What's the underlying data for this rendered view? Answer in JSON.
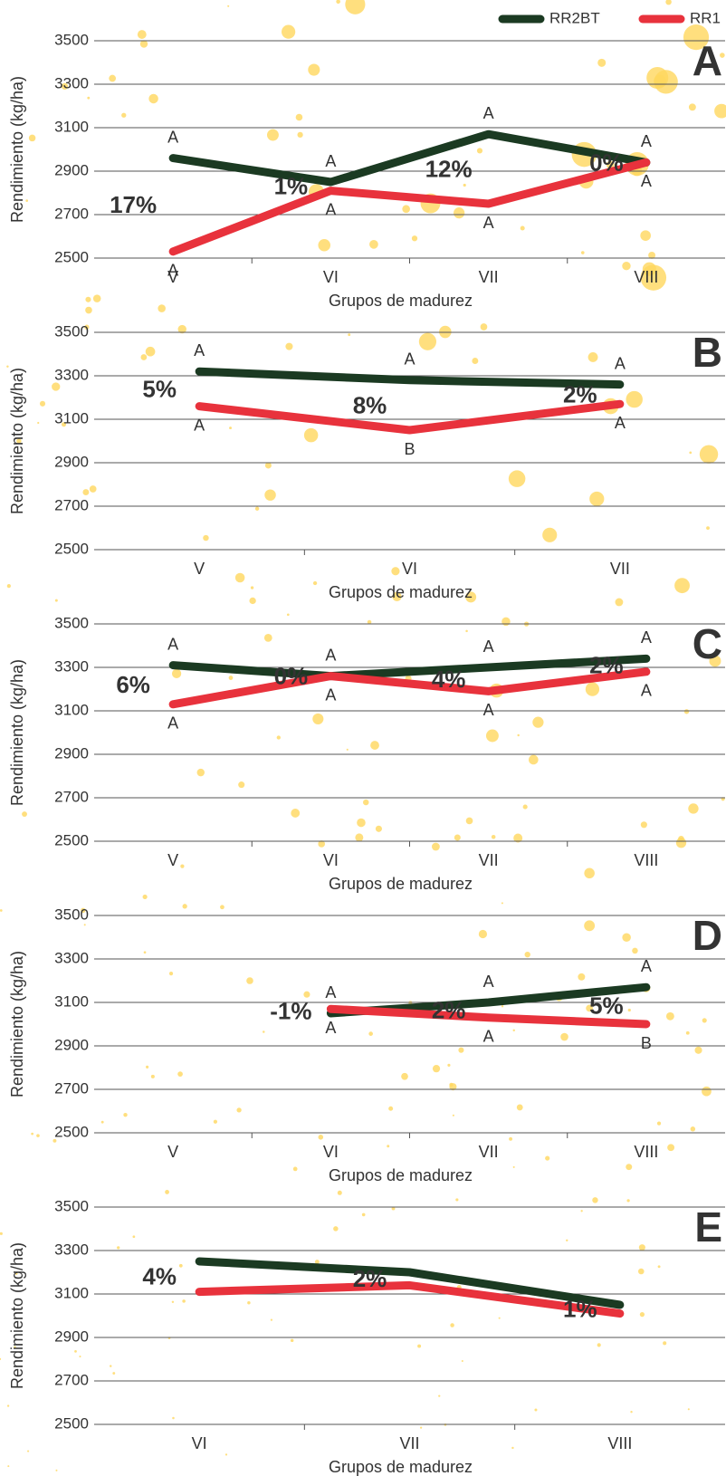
{
  "chart_data": [
    {
      "type": "line",
      "panel": "A",
      "y_label": "Rendimiento (kg/ha)",
      "x_label": "Grupos de madurez",
      "categories": [
        "V",
        "VI",
        "VII",
        "VIII"
      ],
      "series": [
        {
          "name": "RR2BT",
          "color": "#1b3a22",
          "values": [
            2960,
            2850,
            3070,
            2940
          ],
          "letters": [
            "A",
            "A",
            "A",
            "A"
          ]
        },
        {
          "name": "RR1",
          "color": "#e8323c",
          "values": [
            2530,
            2810,
            2750,
            2940
          ],
          "letters": [
            "A",
            "A",
            "A",
            "A"
          ]
        }
      ],
      "diff_labels": [
        "17%",
        "1%",
        "12%",
        "0%"
      ],
      "ylim": [
        2500,
        3500
      ],
      "yticks": [
        2500,
        2700,
        2900,
        3100,
        3300,
        3500
      ],
      "grid": true
    },
    {
      "type": "line",
      "panel": "B",
      "y_label": "Rendimiento (kg/ha)",
      "x_label": "Grupos de madurez",
      "categories": [
        "V",
        "VI",
        "VII"
      ],
      "series": [
        {
          "color": "#1b3a22",
          "values": [
            3320,
            3280,
            3260
          ],
          "letters": [
            "A",
            "A",
            "A"
          ]
        },
        {
          "color": "#e8323c",
          "values": [
            3160,
            3050,
            3170
          ],
          "letters": [
            "A",
            "B",
            "A"
          ]
        }
      ],
      "diff_labels": [
        "5%",
        "8%",
        "2%"
      ],
      "ylim": [
        2500,
        3500
      ],
      "yticks": [
        2500,
        2700,
        2900,
        3100,
        3300,
        3500
      ],
      "grid": true
    },
    {
      "type": "line",
      "panel": "C",
      "y_label": "Rendimiento (kg/ha)",
      "x_label": "Grupos de madurez",
      "categories": [
        "V",
        "VI",
        "VII",
        "VIII"
      ],
      "series": [
        {
          "color": "#1b3a22",
          "values": [
            3310,
            3260,
            3300,
            3340
          ],
          "letters": [
            "A",
            "A",
            "A",
            "A"
          ]
        },
        {
          "color": "#e8323c",
          "values": [
            3130,
            3260,
            3190,
            3280
          ],
          "letters": [
            "A",
            "A",
            "A",
            "A"
          ]
        }
      ],
      "diff_labels": [
        "6%",
        "0%",
        "4%",
        "2%"
      ],
      "ylim": [
        2500,
        3500
      ],
      "yticks": [
        2500,
        2700,
        2900,
        3100,
        3300,
        3500
      ],
      "grid": true
    },
    {
      "type": "line",
      "panel": "D",
      "y_label": "Rendimiento (kg/ha)",
      "x_label": "Grupos de madurez",
      "categories": [
        "V",
        "VI",
        "VII",
        "VIII"
      ],
      "series": [
        {
          "color": "#1b3a22",
          "values": [
            null,
            3050,
            3100,
            3170
          ],
          "letters": [
            null,
            "A",
            "A",
            "A"
          ]
        },
        {
          "color": "#e8323c",
          "values": [
            null,
            3070,
            3030,
            3000
          ],
          "letters": [
            null,
            "A",
            "A",
            "B"
          ]
        }
      ],
      "diff_labels": [
        null,
        "-1%",
        "2%",
        "5%"
      ],
      "ylim": [
        2500,
        3500
      ],
      "yticks": [
        2500,
        2700,
        2900,
        3100,
        3300,
        3500
      ],
      "grid": true
    },
    {
      "type": "line",
      "panel": "E",
      "y_label": "Rendimiento (kg/ha)",
      "x_label": "Grupos de madurez",
      "categories": [
        "VI",
        "VII",
        "VIII"
      ],
      "series": [
        {
          "color": "#1b3a22",
          "values": [
            3250,
            3200,
            3050
          ]
        },
        {
          "color": "#e8323c",
          "values": [
            3110,
            3140,
            3010
          ]
        }
      ],
      "diff_labels": [
        "4%",
        "2%",
        "1%"
      ],
      "ylim": [
        2500,
        3500
      ],
      "yticks": [
        2500,
        2700,
        2900,
        3100,
        3300,
        3500
      ],
      "grid": true
    }
  ]
}
